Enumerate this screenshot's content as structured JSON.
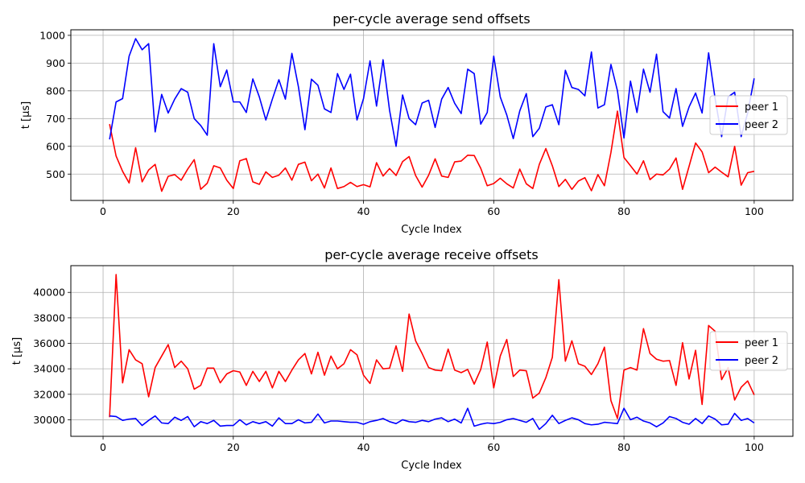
{
  "colors": {
    "peer1": "#ff0000",
    "peer2": "#0000ff",
    "grid": "#b0b0b0"
  },
  "chart_data": [
    {
      "type": "line",
      "title": "per-cycle average send offsets",
      "xlabel": "Cycle Index",
      "ylabel": "t [µs]",
      "xlim": [
        -4.95,
        105.95
      ],
      "ylim": [
        405,
        1020
      ],
      "xticks": [
        0,
        20,
        40,
        60,
        80,
        100
      ],
      "yticks": [
        500,
        600,
        700,
        800,
        900,
        1000
      ],
      "grid": true,
      "legend": "center-right",
      "x": [
        1,
        2,
        3,
        4,
        5,
        6,
        7,
        8,
        9,
        10,
        11,
        12,
        13,
        14,
        15,
        16,
        17,
        18,
        19,
        20,
        21,
        22,
        23,
        24,
        25,
        26,
        27,
        28,
        29,
        30,
        31,
        32,
        33,
        34,
        35,
        36,
        37,
        38,
        39,
        40,
        41,
        42,
        43,
        44,
        45,
        46,
        47,
        48,
        49,
        50,
        51,
        52,
        53,
        54,
        55,
        56,
        57,
        58,
        59,
        60,
        61,
        62,
        63,
        64,
        65,
        66,
        67,
        68,
        69,
        70,
        71,
        72,
        73,
        74,
        75,
        76,
        77,
        78,
        79,
        80,
        81,
        82,
        83,
        84,
        85,
        86,
        87,
        88,
        89,
        90,
        91,
        92,
        93,
        94,
        95,
        96,
        97,
        98,
        99,
        100
      ],
      "series": [
        {
          "name": "peer 1",
          "values": [
            680,
            565,
            510,
            468,
            595,
            472,
            515,
            535,
            438,
            492,
            498,
            478,
            518,
            552,
            445,
            467,
            530,
            522,
            478,
            448,
            548,
            556,
            472,
            463,
            508,
            488,
            496,
            522,
            478,
            535,
            543,
            476,
            500,
            450,
            522,
            448,
            455,
            470,
            455,
            462,
            454,
            541,
            493,
            520,
            495,
            545,
            563,
            495,
            453,
            496,
            555,
            493,
            488,
            544,
            547,
            568,
            567,
            521,
            458,
            466,
            485,
            465,
            450,
            518,
            465,
            448,
            535,
            592,
            530,
            455,
            481,
            445,
            475,
            487,
            440,
            498,
            458,
            578,
            727,
            560,
            530,
            500,
            548,
            480,
            500,
            497,
            518,
            558,
            445,
            528,
            612,
            580,
            505,
            525,
            507,
            490,
            600,
            460,
            505,
            510
          ]
        },
        {
          "name": "peer 2",
          "values": [
            625,
            760,
            772,
            925,
            988,
            948,
            970,
            652,
            787,
            720,
            770,
            808,
            795,
            700,
            675,
            640,
            970,
            815,
            875,
            760,
            760,
            722,
            843,
            778,
            695,
            770,
            840,
            770,
            935,
            815,
            660,
            842,
            820,
            735,
            722,
            862,
            805,
            860,
            695,
            772,
            908,
            745,
            912,
            730,
            600,
            785,
            700,
            678,
            756,
            766,
            668,
            770,
            812,
            755,
            718,
            878,
            862,
            680,
            722,
            925,
            778,
            713,
            628,
            728,
            790,
            635,
            665,
            742,
            750,
            678,
            874,
            812,
            805,
            782,
            940,
            738,
            750,
            895,
            800,
            630,
            835,
            722,
            878,
            795,
            932,
            725,
            702,
            808,
            672,
            742,
            792,
            720,
            937,
            772,
            635,
            778,
            795,
            635,
            720,
            845
          ]
        }
      ]
    },
    {
      "type": "line",
      "title": "per-cycle average receive offsets",
      "xlabel": "Cycle Index",
      "ylabel": "t [µs]",
      "xlim": [
        -4.95,
        105.95
      ],
      "ylim": [
        28700,
        42100
      ],
      "xticks": [
        0,
        20,
        40,
        60,
        80,
        100
      ],
      "yticks": [
        30000,
        32000,
        34000,
        36000,
        38000,
        40000
      ],
      "grid": true,
      "legend": "center-right",
      "x": [
        1,
        2,
        3,
        4,
        5,
        6,
        7,
        8,
        9,
        10,
        11,
        12,
        13,
        14,
        15,
        16,
        17,
        18,
        19,
        20,
        21,
        22,
        23,
        24,
        25,
        26,
        27,
        28,
        29,
        30,
        31,
        32,
        33,
        34,
        35,
        36,
        37,
        38,
        39,
        40,
        41,
        42,
        43,
        44,
        45,
        46,
        47,
        48,
        49,
        50,
        51,
        52,
        53,
        54,
        55,
        56,
        57,
        58,
        59,
        60,
        61,
        62,
        63,
        64,
        65,
        66,
        67,
        68,
        69,
        70,
        71,
        72,
        73,
        74,
        75,
        76,
        77,
        78,
        79,
        80,
        81,
        82,
        83,
        84,
        85,
        86,
        87,
        88,
        89,
        90,
        91,
        92,
        93,
        94,
        95,
        96,
        97,
        98,
        99,
        100
      ],
      "series": [
        {
          "name": "peer 1",
          "values": [
            30200,
            41400,
            32900,
            35500,
            34700,
            34400,
            31800,
            34100,
            35000,
            35900,
            34100,
            34600,
            34000,
            32400,
            32700,
            34050,
            34050,
            32900,
            33600,
            33850,
            33750,
            32700,
            33800,
            33000,
            33800,
            32500,
            33800,
            33000,
            33900,
            34700,
            35200,
            33600,
            35300,
            33500,
            35000,
            34000,
            34400,
            35500,
            35100,
            33500,
            32850,
            34700,
            34000,
            34050,
            35800,
            33800,
            38300,
            36200,
            35200,
            34100,
            33900,
            33850,
            35550,
            33900,
            33700,
            33950,
            32800,
            33950,
            36100,
            32500,
            35000,
            36300,
            33400,
            33900,
            33850,
            31700,
            32100,
            33300,
            34900,
            41000,
            34600,
            36200,
            34400,
            34200,
            33550,
            34400,
            35700,
            31500,
            30100,
            33900,
            34100,
            33900,
            37150,
            35200,
            34750,
            34600,
            34650,
            32700,
            36050,
            33200,
            35450,
            31200,
            37400,
            36950,
            33150,
            34100,
            31550,
            32550,
            33050,
            31950
          ]
        },
        {
          "name": "peer 2",
          "values": [
            30300,
            30250,
            29950,
            30050,
            30100,
            29550,
            29950,
            30300,
            29750,
            29700,
            30200,
            29950,
            30250,
            29450,
            29850,
            29700,
            29950,
            29500,
            29550,
            29550,
            30000,
            29600,
            29850,
            29700,
            29850,
            29500,
            30150,
            29700,
            29700,
            30000,
            29750,
            29800,
            30450,
            29750,
            29900,
            29900,
            29850,
            29800,
            29800,
            29650,
            29850,
            29950,
            30100,
            29850,
            29700,
            30000,
            29850,
            29800,
            29950,
            29850,
            30050,
            30150,
            29850,
            30050,
            29750,
            30900,
            29500,
            29650,
            29750,
            29700,
            29800,
            30000,
            30100,
            29950,
            29800,
            30100,
            29250,
            29700,
            30350,
            29700,
            29950,
            30150,
            30000,
            29700,
            29600,
            29650,
            29800,
            29750,
            29700,
            30900,
            30000,
            30200,
            29900,
            29750,
            29450,
            29750,
            30250,
            30100,
            29800,
            29650,
            30100,
            29700,
            30300,
            30050,
            29600,
            29650,
            30500,
            29950,
            30100,
            29750
          ]
        }
      ]
    }
  ]
}
